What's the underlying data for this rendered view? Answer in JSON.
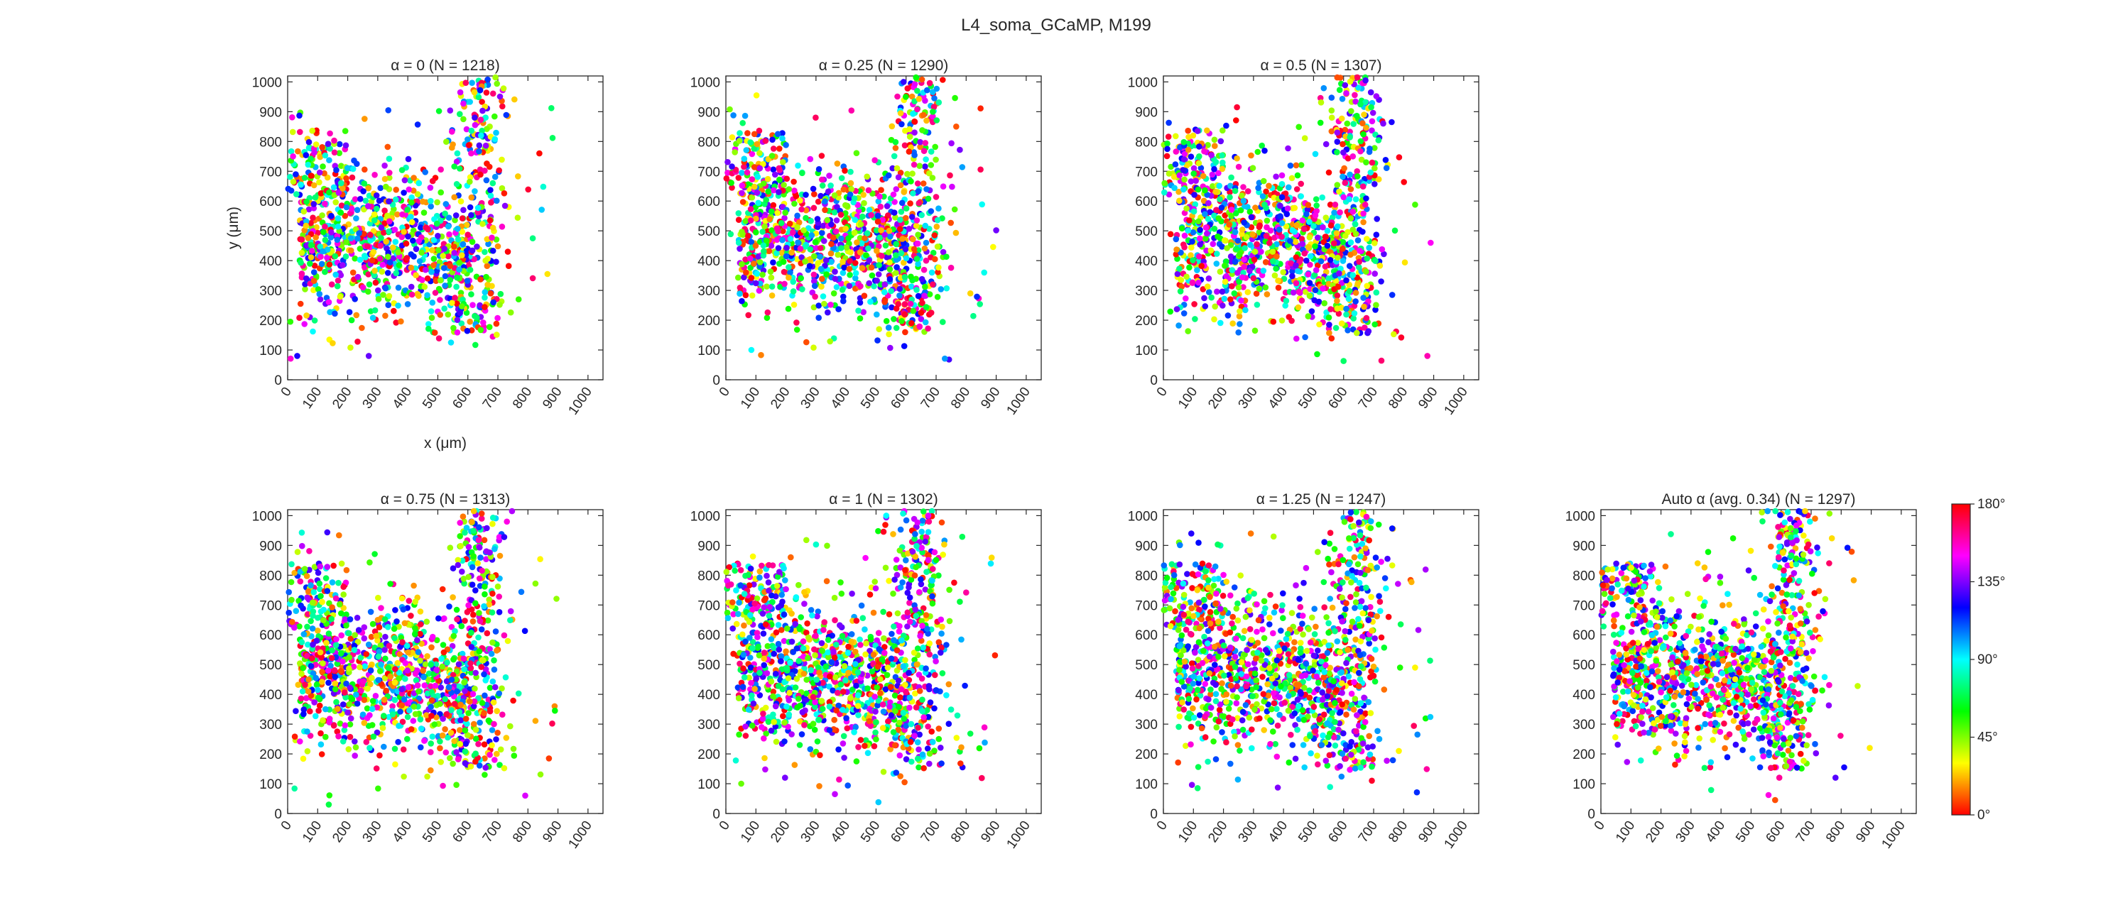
{
  "figure": {
    "title": "L4_soma_GCaMP, M199"
  },
  "chart_data": [
    {
      "type": "scatter",
      "title": "α = 0 (N = 1218)",
      "xlabel": "x (μm)",
      "ylabel": "y (μm)",
      "xlim": [
        0,
        1050
      ],
      "ylim": [
        0,
        1020
      ],
      "xticks": [
        0,
        100,
        200,
        300,
        400,
        500,
        600,
        700,
        800,
        900,
        1000
      ],
      "yticks": [
        0,
        100,
        200,
        300,
        400,
        500,
        600,
        700,
        800,
        900,
        1000
      ],
      "n_points": 1218,
      "seed": 11,
      "points": []
    },
    {
      "type": "scatter",
      "title": "α = 0.25 (N = 1290)",
      "xlabel": "",
      "ylabel": "",
      "xlim": [
        0,
        1050
      ],
      "ylim": [
        0,
        1020
      ],
      "xticks": [
        0,
        100,
        200,
        300,
        400,
        500,
        600,
        700,
        800,
        900,
        1000
      ],
      "yticks": [
        0,
        100,
        200,
        300,
        400,
        500,
        600,
        700,
        800,
        900,
        1000
      ],
      "n_points": 1290,
      "seed": 23,
      "points": []
    },
    {
      "type": "scatter",
      "title": "α = 0.5 (N = 1307)",
      "xlabel": "",
      "ylabel": "",
      "xlim": [
        0,
        1050
      ],
      "ylim": [
        0,
        1020
      ],
      "xticks": [
        0,
        100,
        200,
        300,
        400,
        500,
        600,
        700,
        800,
        900,
        1000
      ],
      "yticks": [
        0,
        100,
        200,
        300,
        400,
        500,
        600,
        700,
        800,
        900,
        1000
      ],
      "n_points": 1307,
      "seed": 37,
      "points": []
    },
    {
      "type": "scatter",
      "title": "α = 0.75 (N = 1313)",
      "xlabel": "",
      "ylabel": "",
      "xlim": [
        0,
        1050
      ],
      "ylim": [
        0,
        1020
      ],
      "xticks": [
        0,
        100,
        200,
        300,
        400,
        500,
        600,
        700,
        800,
        900,
        1000
      ],
      "yticks": [
        0,
        100,
        200,
        300,
        400,
        500,
        600,
        700,
        800,
        900,
        1000
      ],
      "n_points": 1313,
      "seed": 41,
      "points": []
    },
    {
      "type": "scatter",
      "title": "α = 1 (N = 1302)",
      "xlabel": "",
      "ylabel": "",
      "xlim": [
        0,
        1050
      ],
      "ylim": [
        0,
        1020
      ],
      "xticks": [
        0,
        100,
        200,
        300,
        400,
        500,
        600,
        700,
        800,
        900,
        1000
      ],
      "yticks": [
        0,
        100,
        200,
        300,
        400,
        500,
        600,
        700,
        800,
        900,
        1000
      ],
      "n_points": 1302,
      "seed": 53,
      "points": []
    },
    {
      "type": "scatter",
      "title": "α = 1.25 (N = 1247)",
      "xlabel": "",
      "ylabel": "",
      "xlim": [
        0,
        1050
      ],
      "ylim": [
        0,
        1020
      ],
      "xticks": [
        0,
        100,
        200,
        300,
        400,
        500,
        600,
        700,
        800,
        900,
        1000
      ],
      "yticks": [
        0,
        100,
        200,
        300,
        400,
        500,
        600,
        700,
        800,
        900,
        1000
      ],
      "n_points": 1247,
      "seed": 67,
      "points": []
    },
    {
      "type": "scatter",
      "title": "Auto α (avg. 0.34) (N = 1297)",
      "xlabel": "",
      "ylabel": "",
      "xlim": [
        0,
        1050
      ],
      "ylim": [
        0,
        1020
      ],
      "xticks": [
        0,
        100,
        200,
        300,
        400,
        500,
        600,
        700,
        800,
        900,
        1000
      ],
      "yticks": [
        0,
        100,
        200,
        300,
        400,
        500,
        600,
        700,
        800,
        900,
        1000
      ],
      "n_points": 1297,
      "seed": 79,
      "points": []
    }
  ],
  "colorbar": {
    "range": [
      0,
      180
    ],
    "ticks": [
      0,
      45,
      90,
      135,
      180
    ],
    "tick_labels": [
      "0°",
      "45°",
      "90°",
      "135°",
      "180°"
    ],
    "stops": [
      "#ff0000",
      "#ffff00",
      "#00ff00",
      "#00ffff",
      "#0000ff",
      "#ff00ff",
      "#ff0000"
    ]
  }
}
